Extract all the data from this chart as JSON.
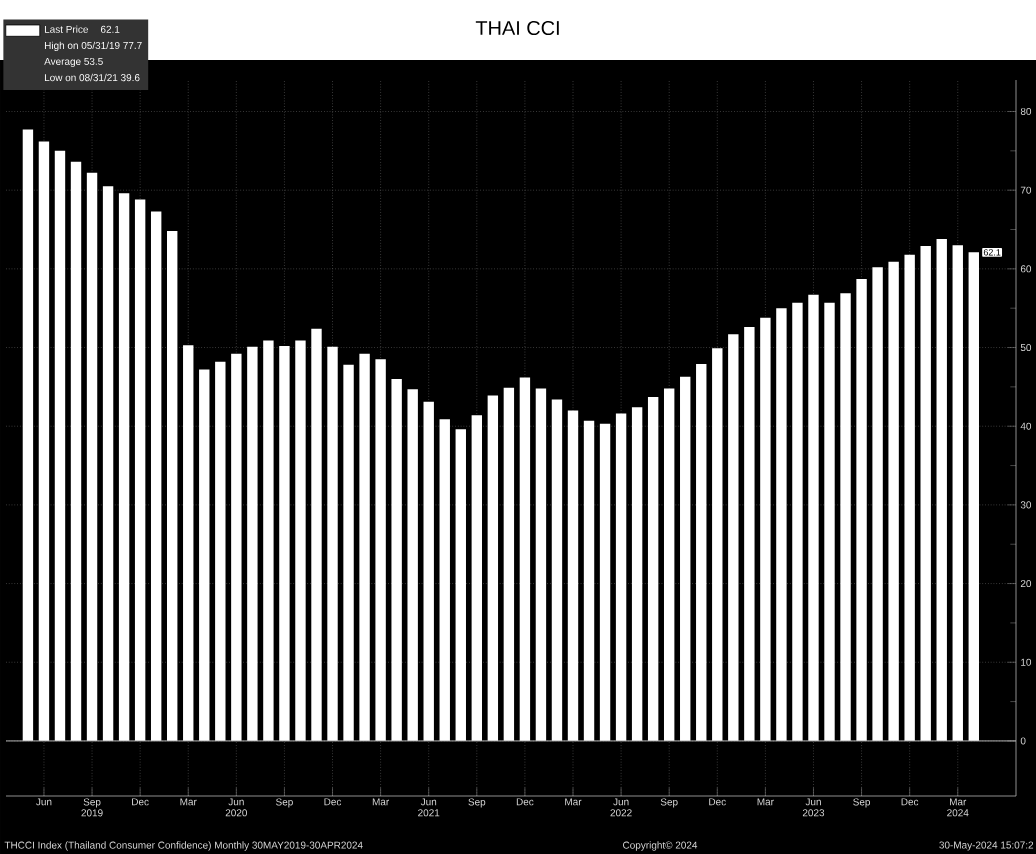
{
  "chart_data": {
    "type": "bar",
    "title": "THAI CCI",
    "x": [
      "2019-05",
      "2019-06",
      "2019-07",
      "2019-08",
      "2019-09",
      "2019-10",
      "2019-11",
      "2019-12",
      "2020-01",
      "2020-02",
      "2020-03",
      "2020-04",
      "2020-05",
      "2020-06",
      "2020-07",
      "2020-08",
      "2020-09",
      "2020-10",
      "2020-11",
      "2020-12",
      "2021-01",
      "2021-02",
      "2021-03",
      "2021-04",
      "2021-05",
      "2021-06",
      "2021-07",
      "2021-08",
      "2021-09",
      "2021-10",
      "2021-11",
      "2021-12",
      "2022-01",
      "2022-02",
      "2022-03",
      "2022-04",
      "2022-05",
      "2022-06",
      "2022-07",
      "2022-08",
      "2022-09",
      "2022-10",
      "2022-11",
      "2022-12",
      "2023-01",
      "2023-02",
      "2023-03",
      "2023-04",
      "2023-05",
      "2023-06",
      "2023-07",
      "2023-08",
      "2023-09",
      "2023-10",
      "2023-11",
      "2023-12",
      "2024-01",
      "2024-02",
      "2024-03",
      "2024-04"
    ],
    "series": [
      {
        "name": "Last Price",
        "color": "#ffffff",
        "values": [
          77.7,
          76.2,
          75.0,
          73.6,
          72.2,
          70.5,
          69.6,
          68.8,
          67.3,
          64.8,
          50.3,
          47.2,
          48.2,
          49.2,
          50.1,
          50.9,
          50.2,
          50.9,
          52.4,
          50.1,
          47.8,
          49.2,
          48.5,
          46.0,
          44.7,
          43.1,
          40.9,
          39.6,
          41.4,
          43.9,
          44.9,
          46.2,
          44.8,
          43.4,
          42.0,
          40.7,
          40.3,
          41.6,
          42.4,
          43.7,
          44.8,
          46.3,
          47.9,
          49.9,
          51.7,
          52.6,
          53.8,
          55.0,
          55.7,
          56.7,
          55.7,
          56.9,
          58.7,
          60.2,
          60.9,
          61.8,
          62.9,
          63.8,
          63.0,
          62.1
        ]
      }
    ],
    "xlim": [
      "2019-03-20",
      "2024-06-20"
    ],
    "xticks": [
      {
        "value": "2019-06",
        "label": "Jun"
      },
      {
        "value": "2019-09",
        "label": "Sep 2019"
      },
      {
        "value": "2019-12",
        "label": "Dec"
      },
      {
        "value": "2020-03",
        "label": "Mar"
      },
      {
        "value": "2020-06",
        "label": "Jun 2020"
      },
      {
        "value": "2020-09",
        "label": "Sep"
      },
      {
        "value": "2020-12",
        "label": "Dec"
      },
      {
        "value": "2021-03",
        "label": "Mar"
      },
      {
        "value": "2021-06",
        "label": "Jun 2021"
      },
      {
        "value": "2021-09",
        "label": "Sep"
      },
      {
        "value": "2021-12",
        "label": "Dec"
      },
      {
        "value": "2022-03",
        "label": "Mar"
      },
      {
        "value": "2022-06",
        "label": "Jun 2022"
      },
      {
        "value": "2022-09",
        "label": "Sep"
      },
      {
        "value": "2022-12",
        "label": "Dec"
      },
      {
        "value": "2023-03",
        "label": "Mar"
      },
      {
        "value": "2023-06",
        "label": "Jun 2023"
      },
      {
        "value": "2023-09",
        "label": "Sep"
      },
      {
        "value": "2023-12",
        "label": "Dec"
      },
      {
        "value": "2024-03",
        "label": "Mar 2024"
      }
    ],
    "ylim": [
      -7,
      84
    ],
    "yticks": [
      0,
      10,
      20,
      30,
      40,
      50,
      60,
      70,
      80
    ],
    "grid": true,
    "legend": "top left",
    "annotations": [
      "62.1",
      "High on 05/31/19 77.7",
      "Average 53.5",
      "Low on 08/31/21 39.6",
      {
        "text": "62.1",
        "x": "2024-04",
        "y": 62.1
      },
      "THCCI Index (Thailand Consumer Confidence) Monthly 30MAY2019-30APR2024",
      "Copyright© 2024",
      "30-May-2024 15:07:2"
    ]
  }
}
